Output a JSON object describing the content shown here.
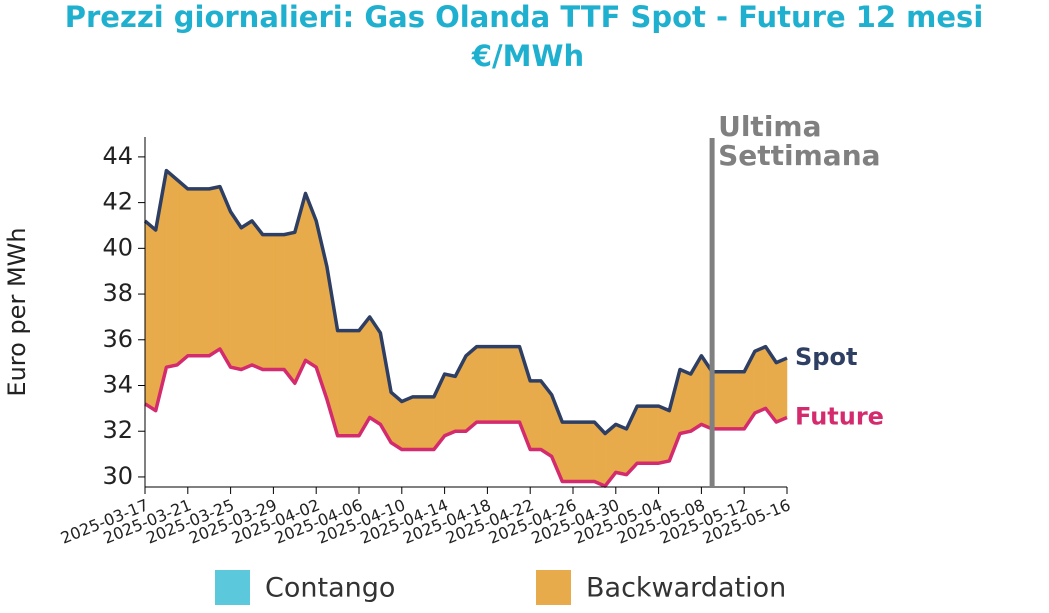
{
  "chart_data": {
    "type": "line",
    "title": "Prezzi giornalieri: Gas Olanda TTF Spot - Future 12 mesi",
    "subtitle": "€/MWh",
    "y_label": "Euro per MWh",
    "x": [
      "2025-03-17",
      "2025-03-18",
      "2025-03-19",
      "2025-03-20",
      "2025-03-21",
      "2025-03-22",
      "2025-03-23",
      "2025-03-24",
      "2025-03-25",
      "2025-03-26",
      "2025-03-27",
      "2025-03-28",
      "2025-03-29",
      "2025-03-30",
      "2025-03-31",
      "2025-04-01",
      "2025-04-02",
      "2025-04-03",
      "2025-04-04",
      "2025-04-05",
      "2025-04-06",
      "2025-04-07",
      "2025-04-08",
      "2025-04-09",
      "2025-04-10",
      "2025-04-11",
      "2025-04-12",
      "2025-04-13",
      "2025-04-14",
      "2025-04-15",
      "2025-04-16",
      "2025-04-17",
      "2025-04-18",
      "2025-04-19",
      "2025-04-20",
      "2025-04-21",
      "2025-04-22",
      "2025-04-23",
      "2025-04-24",
      "2025-04-25",
      "2025-04-26",
      "2025-04-27",
      "2025-04-28",
      "2025-04-29",
      "2025-04-30",
      "2025-05-01",
      "2025-05-02",
      "2025-05-03",
      "2025-05-04",
      "2025-05-05",
      "2025-05-06",
      "2025-05-07",
      "2025-05-08",
      "2025-05-09",
      "2025-05-10",
      "2025-05-11",
      "2025-05-12",
      "2025-05-13",
      "2025-05-14",
      "2025-05-15",
      "2025-05-16"
    ],
    "series": [
      {
        "name": "Spot",
        "color": "#2e3f63",
        "values": [
          41.2,
          40.8,
          43.4,
          43.0,
          42.6,
          42.6,
          42.6,
          42.7,
          41.6,
          40.9,
          41.2,
          40.6,
          40.6,
          40.6,
          40.7,
          42.4,
          41.2,
          39.2,
          36.4,
          36.4,
          36.4,
          37.0,
          36.3,
          33.7,
          33.3,
          33.5,
          33.5,
          33.5,
          34.5,
          34.4,
          35.3,
          35.7,
          35.7,
          35.7,
          35.7,
          35.7,
          34.2,
          34.2,
          33.6,
          32.4,
          32.4,
          32.4,
          32.4,
          31.9,
          32.3,
          32.1,
          33.1,
          33.1,
          33.1,
          32.9,
          34.7,
          34.5,
          35.3,
          34.6,
          34.6,
          34.6,
          34.6,
          35.5,
          35.7,
          35.0,
          35.2
        ]
      },
      {
        "name": "Future",
        "color": "#d42b6e",
        "values": [
          33.2,
          32.9,
          34.8,
          34.9,
          35.3,
          35.3,
          35.3,
          35.6,
          34.8,
          34.7,
          34.9,
          34.7,
          34.7,
          34.7,
          34.1,
          35.1,
          34.8,
          33.4,
          31.8,
          31.8,
          31.8,
          32.6,
          32.3,
          31.5,
          31.2,
          31.2,
          31.2,
          31.2,
          31.8,
          32.0,
          32.0,
          32.4,
          32.4,
          32.4,
          32.4,
          32.4,
          31.2,
          31.2,
          30.9,
          29.8,
          29.8,
          29.8,
          29.8,
          29.6,
          30.2,
          30.1,
          30.6,
          30.6,
          30.6,
          30.7,
          31.9,
          32.0,
          32.3,
          32.1,
          32.1,
          32.1,
          32.1,
          32.8,
          33.0,
          32.4,
          32.6
        ]
      }
    ],
    "fill_legend": [
      {
        "name": "Contango",
        "color": "#5bc8dc"
      },
      {
        "name": "Backwardation",
        "color": "#e8ab4b"
      }
    ],
    "xlim": [
      "2025-03-17",
      "2025-05-16"
    ],
    "xticks": [
      "2025-03-17",
      "2025-03-21",
      "2025-03-25",
      "2025-03-29",
      "2025-04-02",
      "2025-04-06",
      "2025-04-10",
      "2025-04-14",
      "2025-04-18",
      "2025-04-22",
      "2025-04-26",
      "2025-04-30",
      "2025-05-04",
      "2025-05-08",
      "2025-05-12",
      "2025-05-16"
    ],
    "ylim": [
      29.56,
      44.87
    ],
    "yticks": [
      30,
      32,
      34,
      36,
      38,
      40,
      42,
      44
    ],
    "annotation": {
      "lines": [
        "Ultima",
        "Settimana"
      ],
      "x": "2025-05-09",
      "color": "#808080"
    }
  }
}
